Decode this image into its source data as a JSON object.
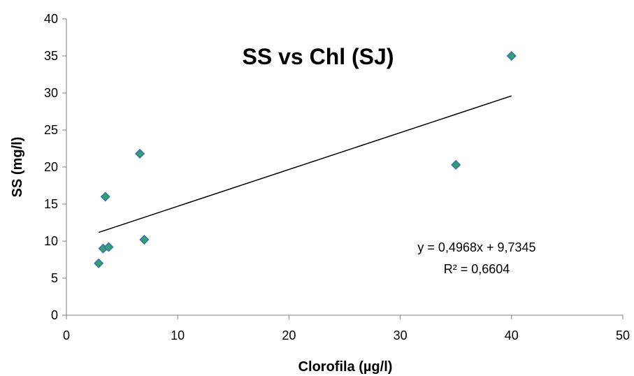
{
  "chart_data": {
    "type": "scatter",
    "title": "SS vs Chl (SJ)",
    "xlabel": "Clorofila (µg/l)",
    "ylabel": "SS (mg/l)",
    "xlim": [
      0,
      50
    ],
    "ylim": [
      0,
      40
    ],
    "xticks": [
      "0",
      "10",
      "20",
      "30",
      "40",
      "50"
    ],
    "yticks": [
      "0",
      "5",
      "10",
      "15",
      "20",
      "25",
      "30",
      "35",
      "40"
    ],
    "grid": false,
    "legend": "none",
    "points": [
      {
        "x": 2.9,
        "y": 7.0
      },
      {
        "x": 3.3,
        "y": 9.0
      },
      {
        "x": 3.8,
        "y": 9.2
      },
      {
        "x": 3.5,
        "y": 16.0
      },
      {
        "x": 6.6,
        "y": 21.8
      },
      {
        "x": 7.0,
        "y": 10.2
      },
      {
        "x": 35.0,
        "y": 20.3
      },
      {
        "x": 40.0,
        "y": 35.0
      }
    ],
    "trendline": {
      "type": "linear",
      "slope": 0.4968,
      "intercept": 9.7345,
      "x_range": [
        2.9,
        40.0
      ],
      "equation": "y = 0,4968x + 9,7345",
      "r_squared": "R² = 0,6604"
    },
    "colors": {
      "marker_fill": "#2ea36a",
      "marker_stroke": "#3b6fb5",
      "line": "#000000",
      "axis": "#7f7f7f"
    }
  }
}
